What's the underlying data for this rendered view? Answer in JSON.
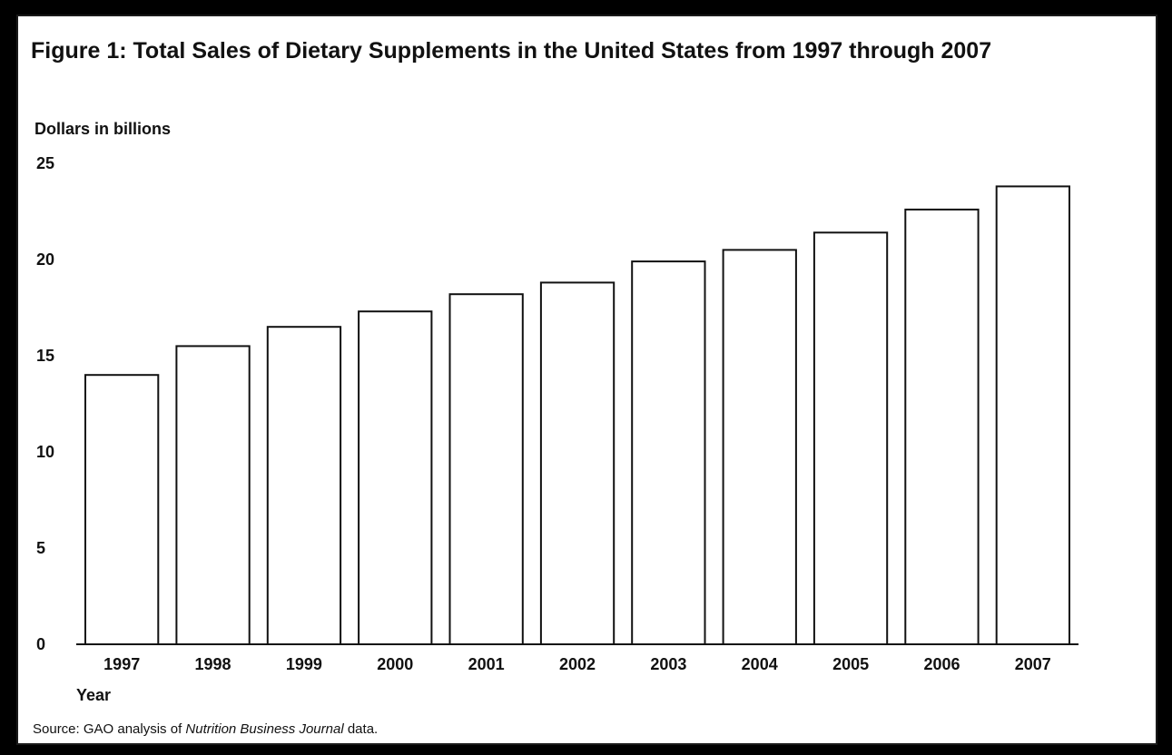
{
  "chart_data": {
    "type": "bar",
    "title": "Figure 1: Total Sales of Dietary Supplements in the United States from 1997 through 2007",
    "ylabel": "Dollars in billions",
    "xlabel": "Year",
    "categories": [
      "1997",
      "1998",
      "1999",
      "2000",
      "2001",
      "2002",
      "2003",
      "2004",
      "2005",
      "2006",
      "2007"
    ],
    "values": [
      14.0,
      15.5,
      16.5,
      17.3,
      18.2,
      18.8,
      19.9,
      20.5,
      21.4,
      22.6,
      23.8
    ],
    "yticks": [
      "0",
      "5",
      "10",
      "15",
      "20",
      "25"
    ],
    "ylim": [
      0,
      25
    ],
    "grid": false,
    "bar_color": "#ffffff",
    "bar_stroke": "#111111"
  },
  "source": {
    "prefix": "Source: GAO analysis of ",
    "italic": "Nutrition Business Journal",
    "suffix": " data."
  }
}
